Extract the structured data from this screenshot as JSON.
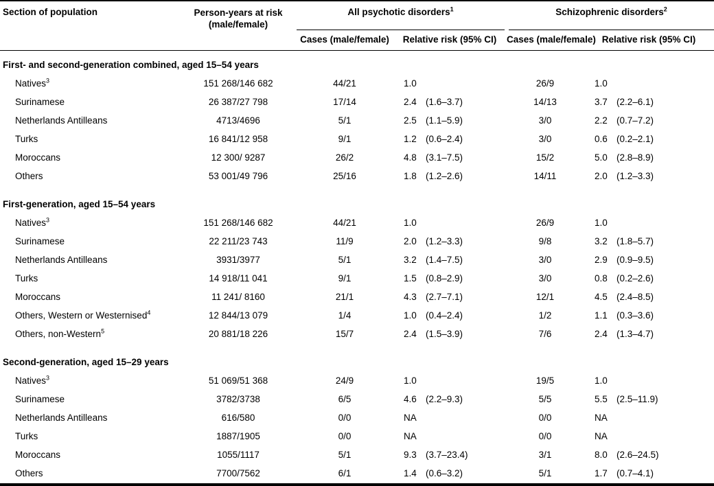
{
  "table": {
    "header": {
      "population": "Section of population",
      "person_years_line1": "Person-years at risk",
      "person_years_line2": "(male/female)",
      "group1_label": "All psychotic disorders",
      "group1_sup": "1",
      "group2_label": "Schizophrenic disorders",
      "group2_sup": "2",
      "sub_cases": "Cases (male/female)",
      "sub_rr": "Relative risk (95% CI)"
    },
    "sections": [
      {
        "title": "First- and second-generation combined, aged 15–54 years",
        "rows": [
          {
            "label": "Natives",
            "sup": "3",
            "py": "151 268/146 682",
            "cases1": "44/21",
            "rr1": "1.0",
            "ci1": "",
            "cases2": "26/9",
            "rr2": "1.0",
            "ci2": ""
          },
          {
            "label": "Surinamese",
            "sup": "",
            "py": "26 387/27 798",
            "cases1": "17/14",
            "rr1": "2.4",
            "ci1": "(1.6–3.7)",
            "cases2": "14/13",
            "rr2": "3.7",
            "ci2": "(2.2–6.1)"
          },
          {
            "label": "Netherlands Antilleans",
            "sup": "",
            "py": "4713/4696",
            "cases1": "5/1",
            "rr1": "2.5",
            "ci1": "(1.1–5.9)",
            "cases2": "3/0",
            "rr2": "2.2",
            "ci2": "(0.7–7.2)"
          },
          {
            "label": "Turks",
            "sup": "",
            "py": "16 841/12 958",
            "cases1": "9/1",
            "rr1": "1.2",
            "ci1": "(0.6–2.4)",
            "cases2": "3/0",
            "rr2": "0.6",
            "ci2": "(0.2–2.1)"
          },
          {
            "label": "Moroccans",
            "sup": "",
            "py": "12 300/ 9287",
            "cases1": "26/2",
            "rr1": "4.8",
            "ci1": "(3.1–7.5)",
            "cases2": "15/2",
            "rr2": "5.0",
            "ci2": "(2.8–8.9)"
          },
          {
            "label": "Others",
            "sup": "",
            "py": "53 001/49 796",
            "cases1": "25/16",
            "rr1": "1.8",
            "ci1": "(1.2–2.6)",
            "cases2": "14/11",
            "rr2": "2.0",
            "ci2": "(1.2–3.3)"
          }
        ]
      },
      {
        "title": "First-generation, aged 15–54 years",
        "rows": [
          {
            "label": "Natives",
            "sup": "3",
            "py": "151 268/146 682",
            "cases1": "44/21",
            "rr1": "1.0",
            "ci1": "",
            "cases2": "26/9",
            "rr2": "1.0",
            "ci2": ""
          },
          {
            "label": "Surinamese",
            "sup": "",
            "py": "22 211/23 743",
            "cases1": "11/9",
            "rr1": "2.0",
            "ci1": "(1.2–3.3)",
            "cases2": "9/8",
            "rr2": "3.2",
            "ci2": "(1.8–5.7)"
          },
          {
            "label": "Netherlands Antilleans",
            "sup": "",
            "py": "3931/3977",
            "cases1": "5/1",
            "rr1": "3.2",
            "ci1": "(1.4–7.5)",
            "cases2": "3/0",
            "rr2": "2.9",
            "ci2": "(0.9–9.5)"
          },
          {
            "label": "Turks",
            "sup": "",
            "py": "14 918/11 041",
            "cases1": "9/1",
            "rr1": "1.5",
            "ci1": "(0.8–2.9)",
            "cases2": "3/0",
            "rr2": "0.8",
            "ci2": "(0.2–2.6)"
          },
          {
            "label": "Moroccans",
            "sup": "",
            "py": "11 241/ 8160",
            "cases1": "21/1",
            "rr1": "4.3",
            "ci1": "(2.7–7.1)",
            "cases2": "12/1",
            "rr2": "4.5",
            "ci2": "(2.4–8.5)"
          },
          {
            "label": "Others, Western or Westernised",
            "sup": "4",
            "py": "12 844/13 079",
            "cases1": "1/4",
            "rr1": "1.0",
            "ci1": "(0.4–2.4)",
            "cases2": "1/2",
            "rr2": "1.1",
            "ci2": "(0.3–3.6)"
          },
          {
            "label": "Others, non-Western",
            "sup": "5",
            "py": "20 881/18 226",
            "cases1": "15/7",
            "rr1": "2.4",
            "ci1": "(1.5–3.9)",
            "cases2": "7/6",
            "rr2": "2.4",
            "ci2": "(1.3–4.7)"
          }
        ]
      },
      {
        "title": "Second-generation, aged 15–29 years",
        "rows": [
          {
            "label": "Natives",
            "sup": "3",
            "py": "51 069/51 368",
            "cases1": "24/9",
            "rr1": "1.0",
            "ci1": "",
            "cases2": "19/5",
            "rr2": "1.0",
            "ci2": ""
          },
          {
            "label": "Surinamese",
            "sup": "",
            "py": "3782/3738",
            "cases1": "6/5",
            "rr1": "4.6",
            "ci1": "(2.2–9.3)",
            "cases2": "5/5",
            "rr2": "5.5",
            "ci2": "(2.5–11.9)"
          },
          {
            "label": "Netherlands Antilleans",
            "sup": "",
            "py": "616/580",
            "cases1": "0/0",
            "rr1": "NA",
            "ci1": "",
            "cases2": "0/0",
            "rr2": "NA",
            "ci2": ""
          },
          {
            "label": "Turks",
            "sup": "",
            "py": "1887/1905",
            "cases1": "0/0",
            "rr1": "NA",
            "ci1": "",
            "cases2": "0/0",
            "rr2": "NA",
            "ci2": ""
          },
          {
            "label": "Moroccans",
            "sup": "",
            "py": "1055/1117",
            "cases1": "5/1",
            "rr1": "9.3",
            "ci1": "(3.7–23.4)",
            "cases2": "3/1",
            "rr2": "8.0",
            "ci2": "(2.6–24.5)"
          },
          {
            "label": "Others",
            "sup": "",
            "py": "7700/7562",
            "cases1": "6/1",
            "rr1": "1.4",
            "ci1": "(0.6–3.2)",
            "cases2": "5/1",
            "rr2": "1.7",
            "ci2": "(0.7–4.1)"
          }
        ]
      }
    ]
  }
}
